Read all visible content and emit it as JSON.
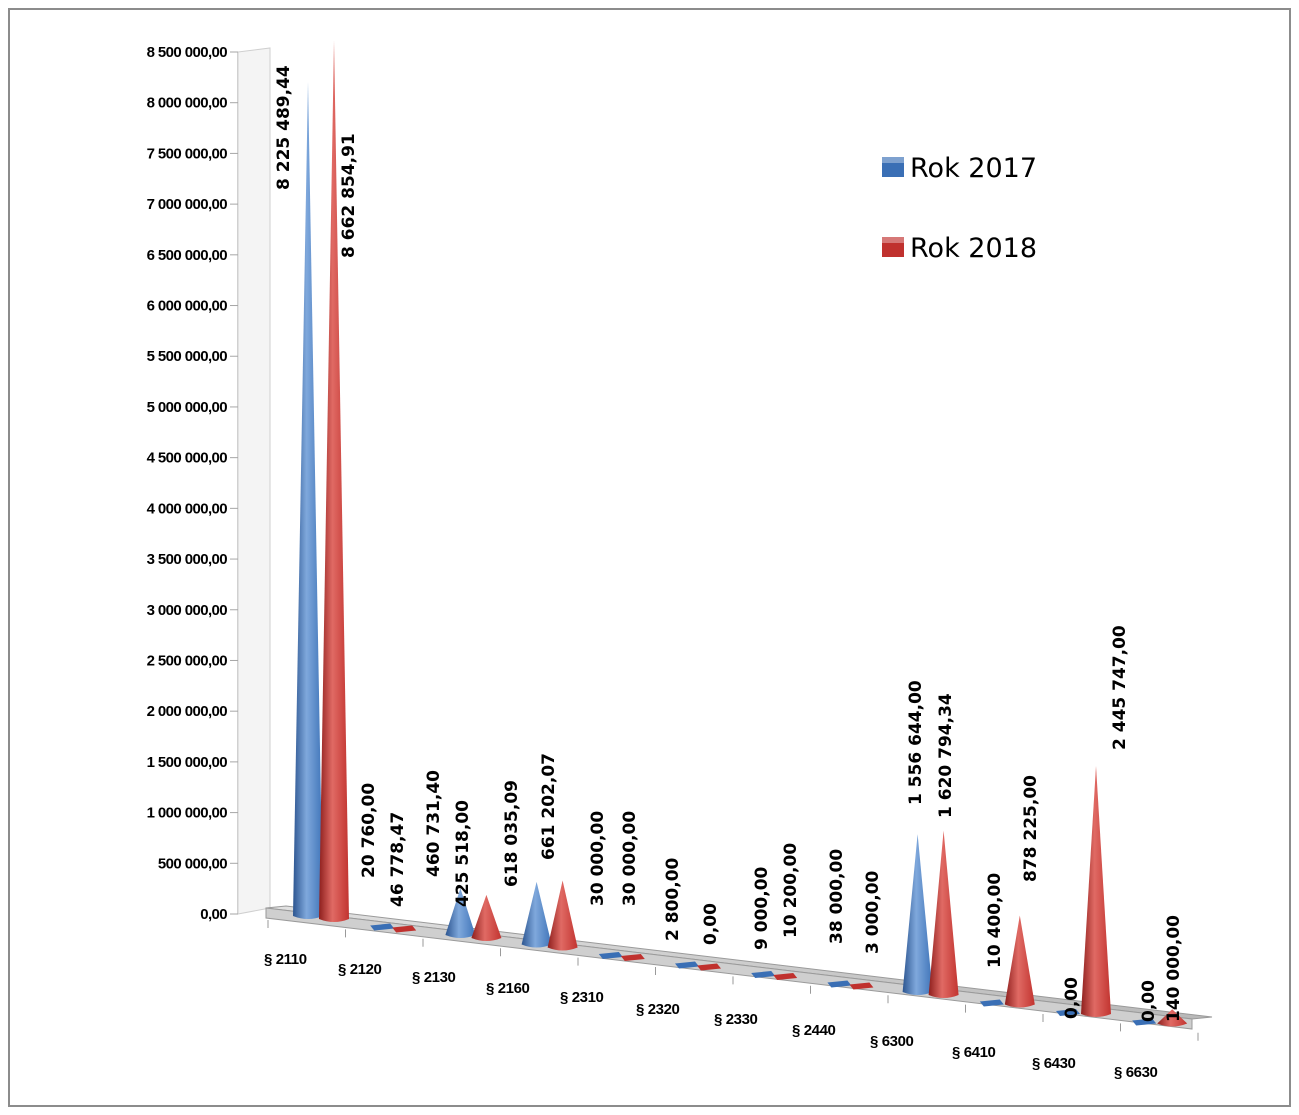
{
  "chart_data": {
    "type": "3d-cone-bar",
    "categories": [
      "§ 2110",
      "§ 2120",
      "§ 2130",
      "§ 2160",
      "§ 2310",
      "§ 2320",
      "§ 2330",
      "§ 2440",
      "§ 6300",
      "§ 6410",
      "§ 6430",
      "§ 6630"
    ],
    "series": [
      {
        "name": "Rok 2017",
        "color": "#3a6fb5",
        "values": [
          8225489.44,
          20760.0,
          460731.4,
          618035.09,
          30000.0,
          2800.0,
          9000.0,
          38000.0,
          1556644.0,
          10400.0,
          0.0,
          0.0
        ],
        "labels": [
          "8 225 489,44",
          "20 760,00",
          "460 731,40",
          "618 035,09",
          "30 000,00",
          "2 800,00",
          "9 000,00",
          "38 000,00",
          "1 556 644,00",
          "10 400,00",
          "0,00",
          "0,00"
        ]
      },
      {
        "name": "Rok 2018",
        "color": "#c0312e",
        "values": [
          8662854.91,
          46778.47,
          425518.0,
          661202.07,
          30000.0,
          0.0,
          10200.0,
          3000.0,
          1620794.34,
          878225.0,
          2445747.0,
          140000.0
        ],
        "labels": [
          "8 662 854,91",
          "46 778,47",
          "425 518,00",
          "661 202,07",
          "30 000,00",
          "0,00",
          "10 200,00",
          "3 000,00",
          "1 620 794,34",
          "878 225,00",
          "2 445 747,00",
          "140 000,00"
        ]
      }
    ],
    "yticks": [
      "0,00",
      "500 000,00",
      "1 000 000,00",
      "1 500 000,00",
      "2 000 000,00",
      "2 500 000,00",
      "3 000 000,00",
      "3 500 000,00",
      "4 000 000,00",
      "4 500 000,00",
      "5 000 000,00",
      "5 500 000,00",
      "6 000 000,00",
      "6 500 000,00",
      "7 000 000,00",
      "7 500 000,00",
      "8 000 000,00",
      "8 500 000,00"
    ],
    "ylim": [
      0,
      8500000
    ],
    "legend": {
      "position": "top-right"
    },
    "grid": false
  }
}
